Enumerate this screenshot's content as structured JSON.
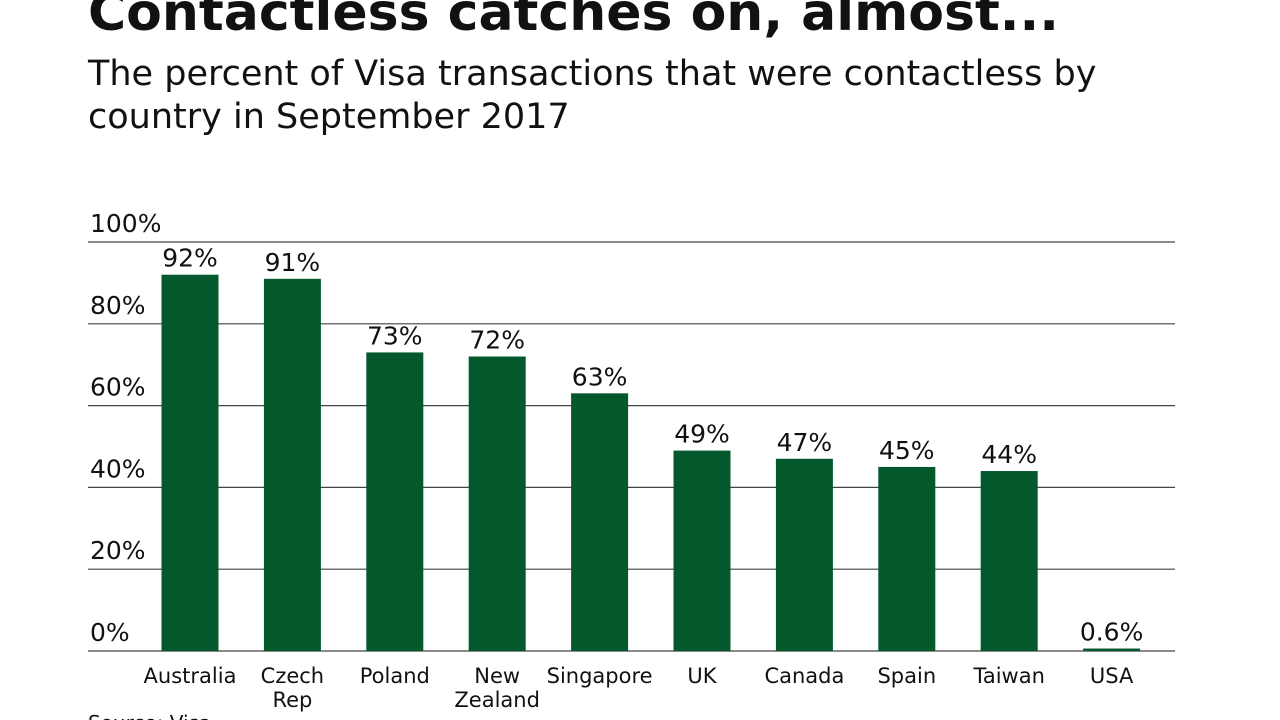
{
  "chart_data": {
    "type": "bar",
    "title": "Contactless catches on, almost...",
    "subtitle": [
      "The percent of Visa transactions that were contactless by",
      "country in September 2017"
    ],
    "source": "Source: Visa",
    "categories": [
      "Australia",
      "Czech Rep",
      "Poland",
      "New Zealand",
      "Singapore",
      "UK",
      "Canada",
      "Spain",
      "Taiwan",
      "USA"
    ],
    "values": [
      92,
      91,
      73,
      72,
      63,
      49,
      47,
      45,
      44,
      0.6
    ],
    "value_labels": [
      "92%",
      "91%",
      "73%",
      "72%",
      "63%",
      "49%",
      "47%",
      "45%",
      "44%",
      "0.6%"
    ],
    "color": "#03592b",
    "ylim": [
      0,
      100
    ],
    "yticks": [
      {
        "value": 0,
        "label": "0%"
      },
      {
        "value": 20,
        "label": "20%"
      },
      {
        "value": 40,
        "label": "40%"
      },
      {
        "value": 60,
        "label": "60%"
      },
      {
        "value": 80,
        "label": "80%"
      },
      {
        "value": 100,
        "label": "100%"
      }
    ],
    "grid": true
  }
}
